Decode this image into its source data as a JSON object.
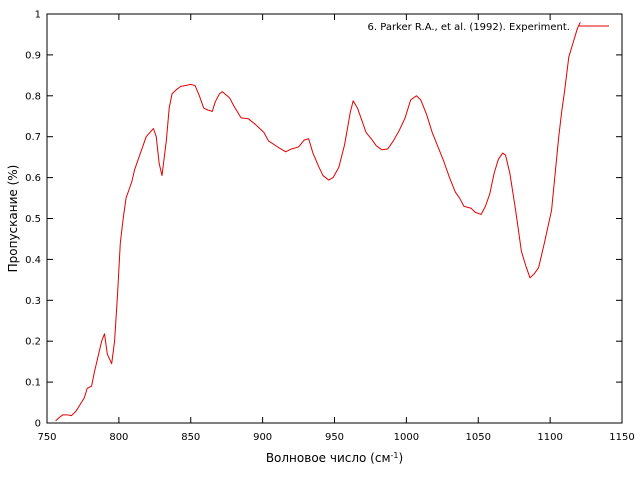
{
  "chart_data": {
    "type": "line",
    "xlabel": "Волновое число (см",
    "xlabel_sup": "-1",
    "xlabel_suffix": ")",
    "ylabel": "Пропускание (%)",
    "xlim": [
      750,
      1150
    ],
    "ylim": [
      0,
      1
    ],
    "x_ticks": [
      750,
      800,
      850,
      900,
      950,
      1000,
      1050,
      1100,
      1150
    ],
    "y_ticks": [
      0,
      0.1,
      0.2,
      0.3,
      0.4,
      0.5,
      0.6,
      0.7,
      0.8,
      0.9,
      1
    ],
    "y_tick_labels": [
      "0",
      "0.1",
      "0.2",
      "0.3",
      "0.4",
      "0.5",
      "0.6",
      "0.7",
      "0.8",
      "0.9",
      "1"
    ],
    "grid": false,
    "legend_position": "top-right",
    "series": [
      {
        "name": "6. Parker R.A., et al. (1992). Experiment.",
        "color": "#e00000",
        "points": [
          [
            756,
            0.005
          ],
          [
            758,
            0.012
          ],
          [
            761,
            0.02
          ],
          [
            764,
            0.02
          ],
          [
            767,
            0.018
          ],
          [
            770,
            0.028
          ],
          [
            773,
            0.045
          ],
          [
            776,
            0.062
          ],
          [
            778,
            0.085
          ],
          [
            781,
            0.09
          ],
          [
            783,
            0.125
          ],
          [
            786,
            0.17
          ],
          [
            788,
            0.2
          ],
          [
            790,
            0.218
          ],
          [
            792,
            0.168
          ],
          [
            795,
            0.145
          ],
          [
            797,
            0.2
          ],
          [
            799,
            0.31
          ],
          [
            801,
            0.44
          ],
          [
            803,
            0.5
          ],
          [
            805,
            0.55
          ],
          [
            807,
            0.57
          ],
          [
            809,
            0.59
          ],
          [
            811,
            0.62
          ],
          [
            815,
            0.66
          ],
          [
            819,
            0.7
          ],
          [
            824,
            0.72
          ],
          [
            826,
            0.7
          ],
          [
            828,
            0.635
          ],
          [
            830,
            0.605
          ],
          [
            833,
            0.69
          ],
          [
            835,
            0.77
          ],
          [
            837,
            0.805
          ],
          [
            840,
            0.815
          ],
          [
            843,
            0.823
          ],
          [
            846,
            0.825
          ],
          [
            850,
            0.828
          ],
          [
            853,
            0.825
          ],
          [
            856,
            0.8
          ],
          [
            859,
            0.77
          ],
          [
            862,
            0.765
          ],
          [
            865,
            0.762
          ],
          [
            867,
            0.785
          ],
          [
            870,
            0.805
          ],
          [
            872,
            0.81
          ],
          [
            877,
            0.795
          ],
          [
            880,
            0.775
          ],
          [
            885,
            0.746
          ],
          [
            890,
            0.744
          ],
          [
            895,
            0.73
          ],
          [
            901,
            0.71
          ],
          [
            904,
            0.69
          ],
          [
            910,
            0.676
          ],
          [
            916,
            0.663
          ],
          [
            920,
            0.67
          ],
          [
            925,
            0.675
          ],
          [
            929,
            0.692
          ],
          [
            932,
            0.695
          ],
          [
            935,
            0.66
          ],
          [
            939,
            0.627
          ],
          [
            942,
            0.605
          ],
          [
            946,
            0.594
          ],
          [
            949,
            0.6
          ],
          [
            953,
            0.625
          ],
          [
            957,
            0.68
          ],
          [
            961,
            0.76
          ],
          [
            963,
            0.788
          ],
          [
            966,
            0.77
          ],
          [
            969,
            0.74
          ],
          [
            972,
            0.71
          ],
          [
            976,
            0.693
          ],
          [
            979,
            0.678
          ],
          [
            983,
            0.668
          ],
          [
            987,
            0.67
          ],
          [
            991,
            0.69
          ],
          [
            995,
            0.715
          ],
          [
            999,
            0.745
          ],
          [
            1003,
            0.79
          ],
          [
            1007,
            0.8
          ],
          [
            1010,
            0.79
          ],
          [
            1014,
            0.755
          ],
          [
            1018,
            0.71
          ],
          [
            1022,
            0.675
          ],
          [
            1026,
            0.64
          ],
          [
            1030,
            0.6
          ],
          [
            1034,
            0.565
          ],
          [
            1037,
            0.55
          ],
          [
            1040,
            0.53
          ],
          [
            1045,
            0.525
          ],
          [
            1048,
            0.515
          ],
          [
            1052,
            0.51
          ],
          [
            1055,
            0.53
          ],
          [
            1058,
            0.56
          ],
          [
            1061,
            0.61
          ],
          [
            1064,
            0.645
          ],
          [
            1067,
            0.66
          ],
          [
            1069,
            0.655
          ],
          [
            1072,
            0.61
          ],
          [
            1076,
            0.52
          ],
          [
            1080,
            0.42
          ],
          [
            1083,
            0.385
          ],
          [
            1086,
            0.355
          ],
          [
            1089,
            0.365
          ],
          [
            1092,
            0.38
          ],
          [
            1096,
            0.44
          ],
          [
            1101,
            0.52
          ],
          [
            1106,
            0.7
          ],
          [
            1108,
            0.76
          ],
          [
            1110,
            0.81
          ],
          [
            1113,
            0.895
          ],
          [
            1116,
            0.93
          ],
          [
            1119,
            0.965
          ],
          [
            1121,
            0.98
          ]
        ]
      }
    ]
  }
}
